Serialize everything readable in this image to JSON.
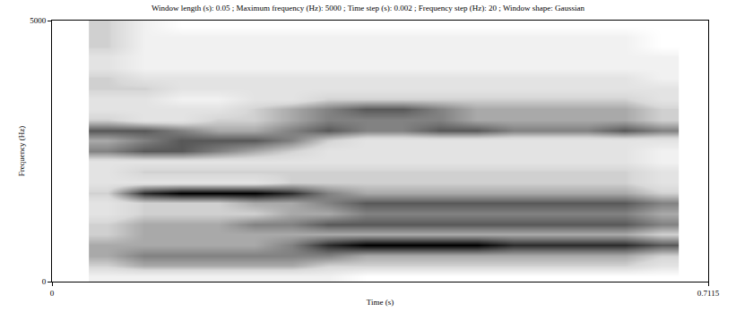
{
  "chart_data": {
    "type": "heatmap",
    "title": "Window length (s): 0.05 ; Maximum frequency (Hz): 5000 ; Time step (s): 0.002 ; Frequency step (Hz): 20 ; Window shape: Gaussian",
    "xlabel": "Time (s)",
    "ylabel": "Frequency (Hz)",
    "xlim": [
      0,
      0.7115
    ],
    "ylim": [
      0,
      5000
    ],
    "xticks": [
      0,
      0.7115
    ],
    "yticks": [
      0,
      5000
    ],
    "x": [
      0.06,
      0.1,
      0.14,
      0.18,
      0.22,
      0.26,
      0.3,
      0.34,
      0.38,
      0.42,
      0.46,
      0.5,
      0.54,
      0.58,
      0.62,
      0.66
    ],
    "y": [
      100,
      300,
      500,
      700,
      900,
      1100,
      1300,
      1500,
      1700,
      1900,
      2100,
      2300,
      2500,
      2700,
      2900,
      3100,
      3300,
      3500,
      3700,
      3900,
      4100,
      4300,
      4500,
      4700,
      4900
    ],
    "z": [
      [
        2,
        2,
        2,
        2,
        2,
        2,
        2,
        1,
        1,
        1,
        1,
        1,
        1,
        1,
        1,
        1
      ],
      [
        4,
        5,
        5,
        5,
        5,
        5,
        4,
        4,
        4,
        4,
        4,
        4,
        4,
        4,
        4,
        3
      ],
      [
        5,
        6,
        6,
        6,
        6,
        6,
        6,
        5,
        5,
        5,
        5,
        5,
        5,
        5,
        5,
        4
      ],
      [
        5,
        5,
        5,
        5,
        5,
        6,
        8,
        9,
        9,
        9,
        9,
        8,
        8,
        8,
        8,
        7
      ],
      [
        4,
        5,
        5,
        5,
        5,
        5,
        5,
        5,
        5,
        5,
        5,
        5,
        5,
        5,
        5,
        4
      ],
      [
        4,
        5,
        5,
        5,
        6,
        6,
        7,
        7,
        7,
        7,
        7,
        7,
        7,
        7,
        7,
        6
      ],
      [
        3,
        4,
        4,
        4,
        4,
        5,
        5,
        6,
        6,
        6,
        6,
        6,
        6,
        6,
        6,
        5
      ],
      [
        3,
        4,
        4,
        4,
        5,
        5,
        6,
        7,
        7,
        7,
        7,
        7,
        7,
        7,
        7,
        6
      ],
      [
        4,
        8,
        9,
        9,
        9,
        8,
        6,
        5,
        5,
        5,
        5,
        5,
        5,
        5,
        5,
        4
      ],
      [
        3,
        3,
        3,
        3,
        3,
        4,
        4,
        4,
        4,
        4,
        4,
        4,
        4,
        4,
        4,
        3
      ],
      [
        3,
        4,
        4,
        4,
        4,
        4,
        4,
        4,
        4,
        4,
        4,
        4,
        4,
        4,
        4,
        3
      ],
      [
        3,
        3,
        3,
        3,
        3,
        3,
        3,
        3,
        3,
        3,
        3,
        3,
        3,
        3,
        3,
        2
      ],
      [
        6,
        7,
        7,
        6,
        5,
        4,
        3,
        3,
        3,
        3,
        3,
        3,
        3,
        3,
        3,
        2
      ],
      [
        5,
        6,
        7,
        7,
        7,
        6,
        4,
        3,
        3,
        3,
        3,
        3,
        3,
        3,
        3,
        3
      ],
      [
        7,
        7,
        6,
        5,
        5,
        6,
        7,
        6,
        6,
        7,
        7,
        6,
        6,
        6,
        7,
        6
      ],
      [
        4,
        3,
        3,
        4,
        4,
        5,
        6,
        6,
        6,
        6,
        5,
        5,
        5,
        5,
        5,
        4
      ],
      [
        3,
        3,
        3,
        3,
        4,
        5,
        6,
        7,
        7,
        6,
        5,
        5,
        5,
        5,
        5,
        4
      ],
      [
        3,
        3,
        2,
        2,
        3,
        3,
        4,
        4,
        4,
        4,
        4,
        4,
        4,
        4,
        4,
        3
      ],
      [
        4,
        4,
        3,
        3,
        3,
        3,
        3,
        3,
        3,
        3,
        3,
        3,
        3,
        3,
        3,
        3
      ],
      [
        4,
        3,
        3,
        3,
        3,
        3,
        3,
        3,
        3,
        3,
        3,
        3,
        3,
        3,
        3,
        2
      ],
      [
        3,
        2,
        2,
        2,
        2,
        2,
        2,
        2,
        2,
        2,
        2,
        2,
        2,
        2,
        2,
        2
      ],
      [
        3,
        2,
        2,
        2,
        2,
        2,
        2,
        2,
        2,
        2,
        2,
        2,
        2,
        2,
        2,
        2
      ],
      [
        4,
        2,
        2,
        2,
        2,
        2,
        2,
        2,
        2,
        2,
        2,
        2,
        2,
        2,
        2,
        1
      ],
      [
        4,
        2,
        2,
        2,
        2,
        2,
        2,
        2,
        2,
        2,
        2,
        2,
        2,
        2,
        2,
        1
      ],
      [
        4,
        2,
        1,
        1,
        1,
        1,
        1,
        1,
        1,
        1,
        1,
        1,
        1,
        1,
        1,
        1
      ]
    ]
  }
}
